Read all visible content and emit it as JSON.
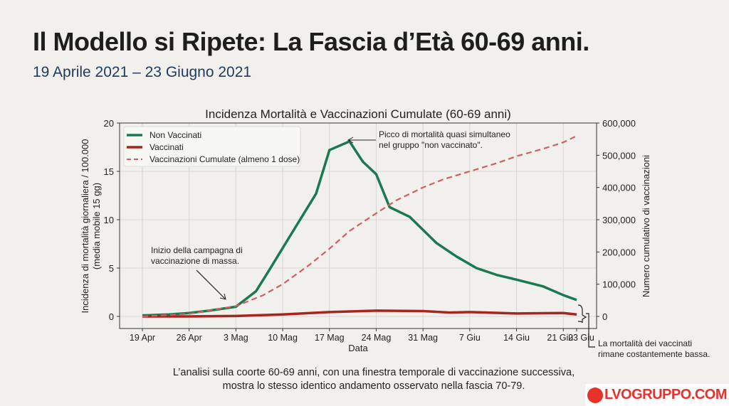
{
  "header": {
    "title": "Il Modello si Ripete: La Fascia d’Età 60-69 anni.",
    "subtitle": "19 Aprile 2021 – 23 Giugno 2021"
  },
  "chart_data": {
    "type": "line",
    "title": "Incidenza Mortalità e Vaccinazioni Cumulate (60-69 anni)",
    "xlabel": "Data",
    "ylabel": "Incidenza di mortalità giornaliera / 100.000\n(media mobile 15 gg)",
    "ylabel_lines": [
      "Incidenza di mortalità giornaliera / 100.000",
      "(media mobile 15 gg)"
    ],
    "y2label": "Numero cumulativo di vaccinazioni",
    "ylim": [
      -0.8,
      20
    ],
    "y2lim": [
      -24000,
      600000
    ],
    "yticks": [
      0,
      5,
      10,
      15,
      20
    ],
    "y2ticks": [
      0,
      100000,
      200000,
      300000,
      400000,
      500000,
      600000
    ],
    "y2tick_labels": [
      "0",
      "100,000",
      "200,000",
      "300,000",
      "400,000",
      "500,000",
      "600,000"
    ],
    "xlim_days": [
      -3,
      68
    ],
    "xticks": [
      {
        "day": 0,
        "label": "19 Apr"
      },
      {
        "day": 7,
        "label": "26 Apr"
      },
      {
        "day": 14,
        "label": "3 Mag"
      },
      {
        "day": 21,
        "label": "10 Mag"
      },
      {
        "day": 28,
        "label": "17 Mag"
      },
      {
        "day": 35,
        "label": "24 Mag"
      },
      {
        "day": 42,
        "label": "31 Mag"
      },
      {
        "day": 49,
        "label": "7 Giu"
      },
      {
        "day": 56,
        "label": "14 Giu"
      },
      {
        "day": 63,
        "label": "21 Giu"
      },
      {
        "day": 65,
        "label": "23 Giu"
      }
    ],
    "grid": true,
    "legend_position": "top-left",
    "series": [
      {
        "name": "Non Vaccinati",
        "axis": "left",
        "color": "#1a7a4f",
        "style": "solid",
        "days": [
          0,
          4,
          7,
          10,
          14,
          17,
          19,
          22,
          26,
          28,
          31,
          33,
          35,
          37,
          40,
          44,
          47,
          50,
          53,
          56,
          60,
          63,
          65
        ],
        "values": [
          0.1,
          0.2,
          0.35,
          0.6,
          1.0,
          2.6,
          4.8,
          8.2,
          12.7,
          17.2,
          18.1,
          16.0,
          14.7,
          11.3,
          10.3,
          7.6,
          6.2,
          5.0,
          4.3,
          3.8,
          3.1,
          2.2,
          1.7
        ]
      },
      {
        "name": "Vaccinati",
        "axis": "left",
        "color": "#a8241e",
        "style": "solid",
        "days": [
          0,
          7,
          14,
          21,
          28,
          35,
          42,
          46,
          49,
          56,
          63,
          65
        ],
        "values": [
          0.0,
          0.0,
          0.05,
          0.2,
          0.45,
          0.6,
          0.55,
          0.4,
          0.45,
          0.3,
          0.35,
          0.2
        ]
      },
      {
        "name": "Vaccinazioni Cumulate (almeno 1 dose)",
        "axis": "right",
        "color": "#d06060",
        "style": "dashed",
        "days": [
          0,
          7,
          14,
          18,
          21,
          25,
          28,
          31,
          35,
          38,
          42,
          45,
          49,
          53,
          56,
          60,
          63,
          65
        ],
        "values": [
          0,
          8000,
          32000,
          65000,
          100000,
          160000,
          210000,
          265000,
          320000,
          360000,
          400000,
          425000,
          450000,
          475000,
          497000,
          520000,
          540000,
          560000
        ]
      }
    ],
    "annotations": [
      {
        "text_lines": [
          "Picco di mortalità quasi simultaneo",
          "nel gruppo \"non vaccinato\"."
        ],
        "target_day": 31,
        "target_value": 18.1
      },
      {
        "text_lines": [
          "Inizio della campagna di",
          "vaccinazione di massa."
        ],
        "target_day": 13,
        "target_value": 1.0
      },
      {
        "text_lines": [
          "La mortalità dei vaccinati",
          "rimane costantemente bassa."
        ],
        "target_day": 65,
        "target_value": 0.2
      }
    ]
  },
  "caption": {
    "line1": "L’analisi sulla coorte 60-69 anni, con una finestra temporale di vaccinazione successiva,",
    "line2": "mostra lo stesso identico andamento osservato nella fascia 70-79."
  },
  "logo": {
    "text": "LVOGRUPPO.COM"
  }
}
